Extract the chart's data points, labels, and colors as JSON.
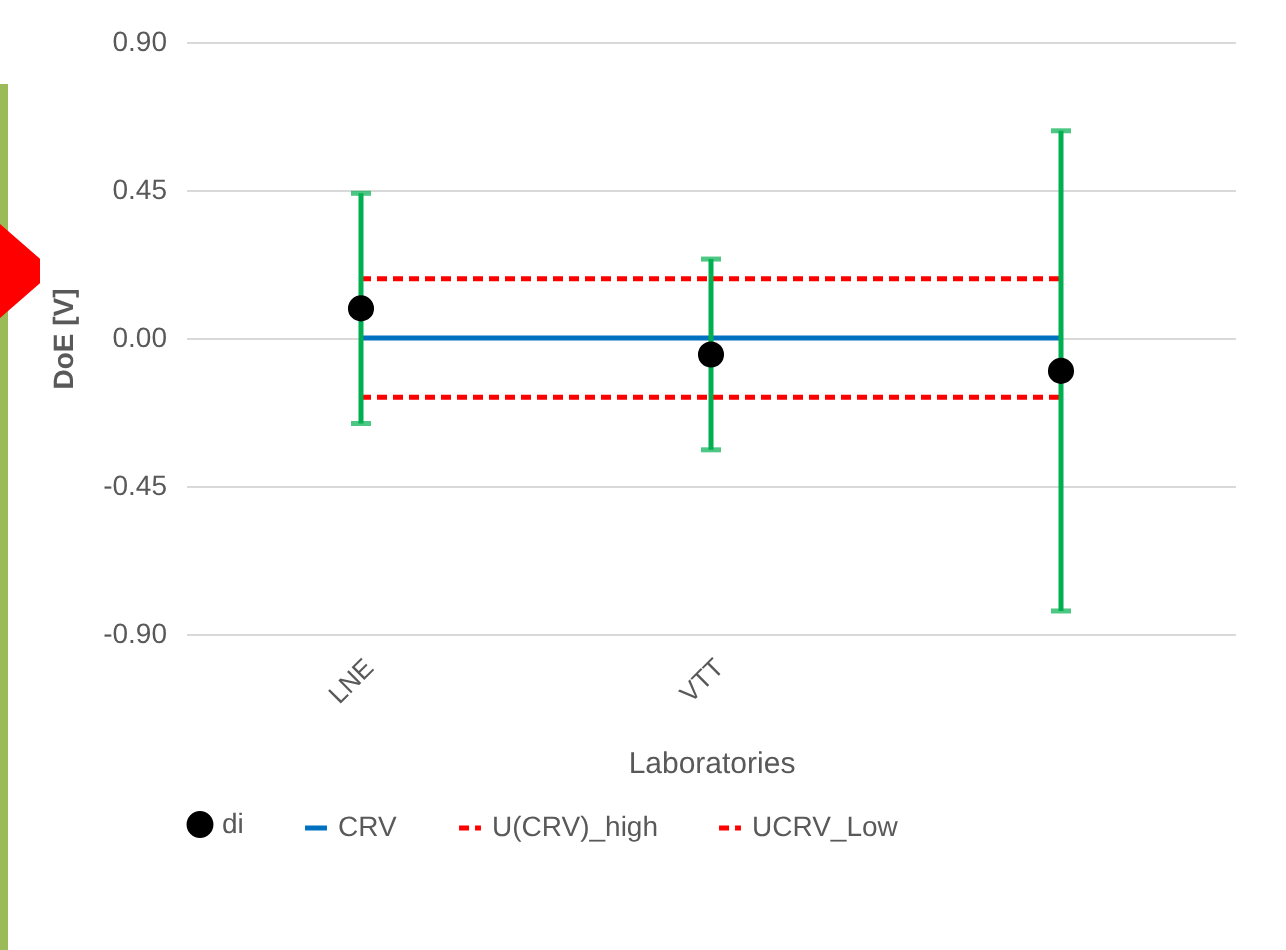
{
  "chart_data": {
    "type": "scatter",
    "xlabel": "Laboratories",
    "ylabel": "DoE [V]",
    "categories": [
      "LNE",
      "VTT",
      null
    ],
    "series": [
      {
        "name": "di",
        "color": "#000000",
        "marker": "circle",
        "values": [
          0.09,
          -0.05,
          -0.1
        ],
        "errors": [
          0.35,
          0.29,
          0.73
        ]
      },
      {
        "name": "CRV",
        "type": "line",
        "color": "#0070c0",
        "line_style": "solid",
        "values": [
          0,
          0,
          0
        ]
      },
      {
        "name": "U(CRV)_high",
        "type": "line",
        "color": "#ff0000",
        "line_style": "dashed",
        "values": [
          0.18,
          0.18,
          0.18
        ]
      },
      {
        "name": "UCRV_Low",
        "type": "line",
        "color": "#ff0000",
        "line_style": "dashed",
        "values": [
          -0.18,
          -0.18,
          -0.18
        ]
      }
    ],
    "ylim": [
      -0.9,
      0.9
    ],
    "yticks": [
      {
        "value": -0.9,
        "label": "-0.90"
      },
      {
        "value": -0.45,
        "label": "-0.45"
      },
      {
        "value": 0,
        "label": "0.00"
      },
      {
        "value": 0.45,
        "label": "0.45"
      },
      {
        "value": 0.9,
        "label": "0.90"
      }
    ],
    "grid": "y",
    "legend": "bottom"
  }
}
